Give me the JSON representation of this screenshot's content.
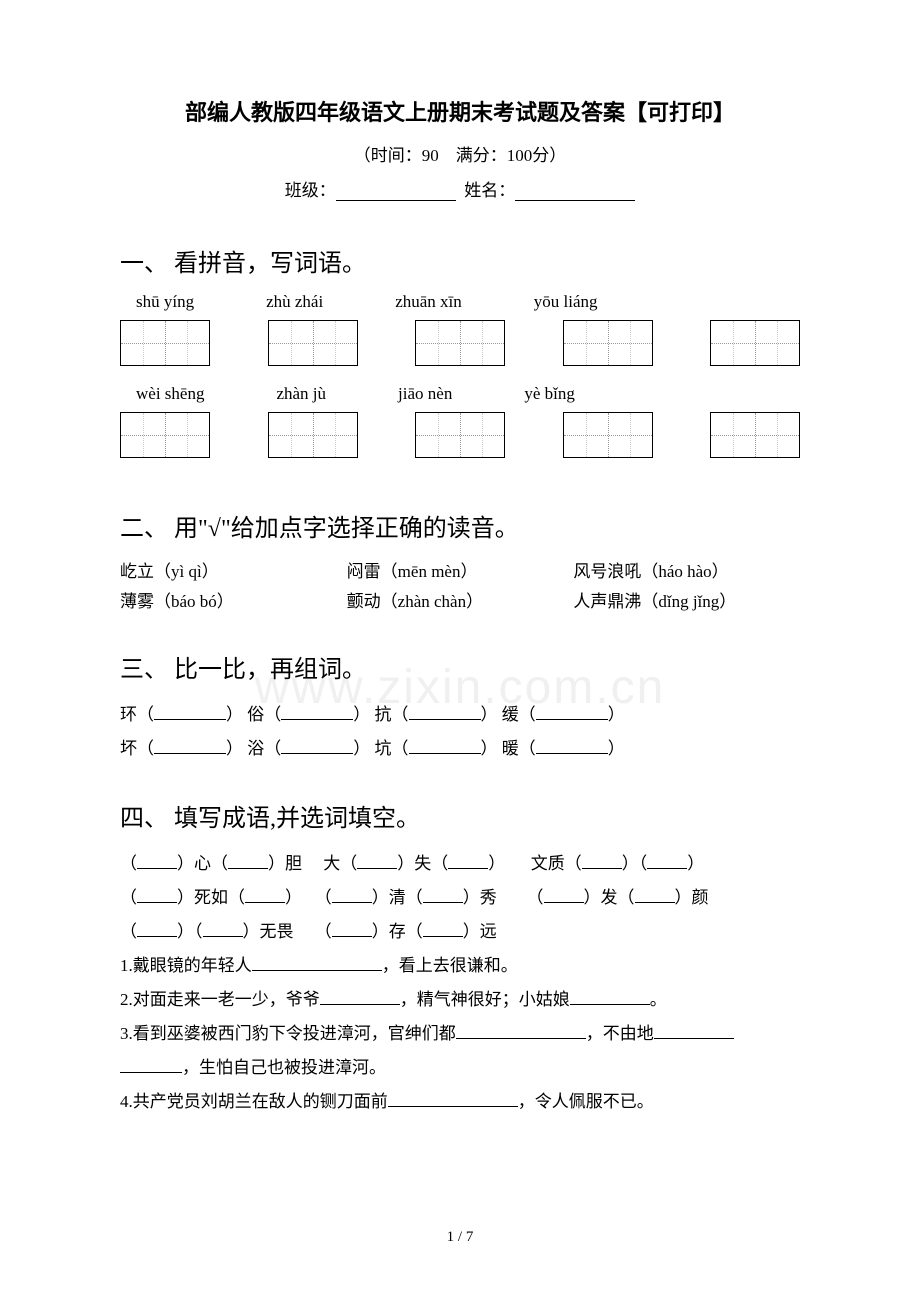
{
  "title": "部编人教版四年级语文上册期末考试题及答案【可打印】",
  "subtitle": "（时间：90　满分：100分）",
  "info": {
    "class_label": "班级：",
    "name_label": "姓名："
  },
  "s1": {
    "heading": "一、 看拼音，写词语。",
    "row1": [
      "shū yíng",
      "zhù zhái",
      "zhuān xīn",
      "yōu liáng"
    ],
    "row2": [
      "wèi shēng",
      "zhàn jù",
      "jiāo nèn",
      "yè bǐng"
    ]
  },
  "s2": {
    "heading": "二、 用\"√\"给加点字选择正确的读音。",
    "items": [
      [
        "屹立（yì qì）",
        "闷雷（mēn mèn）",
        "风号浪吼（háo hào）"
      ],
      [
        "薄雾（báo bó）",
        "颤动（zhàn chàn）",
        "人声鼎沸（dǐng jǐng）"
      ]
    ]
  },
  "s3": {
    "heading": "三、 比一比，再组词。",
    "rows": [
      [
        "环（",
        "） 俗（",
        "） 抗（",
        "） 缓（",
        "）"
      ],
      [
        "坏（",
        "） 浴（",
        "） 坑（",
        "） 暖（",
        "）"
      ]
    ]
  },
  "s4": {
    "heading": "四、 填写成语,并选词填空。",
    "idioms": [
      "（",
      "）心（",
      "）胆　 大（",
      "）失（",
      "）　　文质（",
      "）（",
      "）",
      "（",
      "）死如（",
      "）　 （",
      "）清（",
      "）秀　 　（",
      "）发（",
      "）颜",
      "（",
      "）（",
      "）无畏　 （",
      "）存（",
      "）远"
    ],
    "q1": "1.戴眼镜的年轻人",
    "q1b": "，看上去很谦和。",
    "q2": "2.对面走来一老一少，爷爷",
    "q2b": "，精气神很好；小姑娘",
    "q2c": "。",
    "q3": "3.看到巫婆被西门豹下令投进漳河，官绅们都",
    "q3b": "，不由地",
    "q3c": "，生怕自己也被投进漳河。",
    "q4": "4.共产党员刘胡兰在敌人的铡刀面前",
    "q4b": "，令人佩服不已。"
  },
  "footer": "1 / 7",
  "watermark": "www.zixin.com.cn"
}
